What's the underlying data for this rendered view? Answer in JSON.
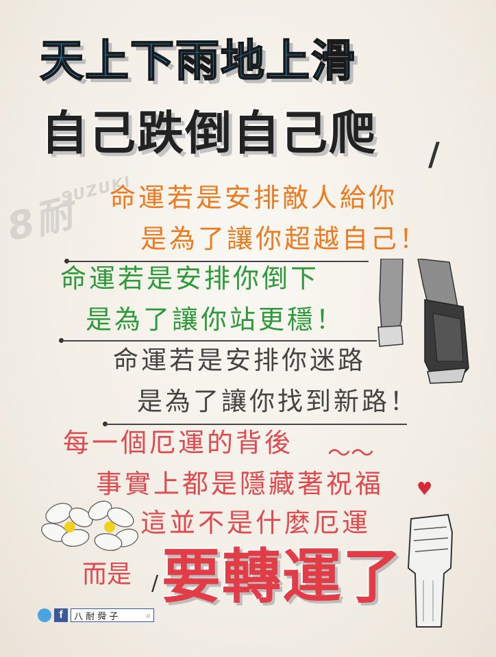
{
  "title": {
    "line1": "天上下雨地上滑",
    "line2": "自己跌倒自己爬"
  },
  "watermark": {
    "main": "8耐",
    "sub": "SUZUKI"
  },
  "verses": {
    "orange_1": "命運若是安排敵人給你",
    "orange_2": "是為了讓你超越自己！",
    "green_1": "命運若是安排你倒下",
    "green_2": "是為了讓你站更穩！",
    "gray_1": "命運若是安排你迷路",
    "gray_2": "是為了讓你找到新路！",
    "red_1": "每一個厄運的背後",
    "red_2": "事實上都是隱藏著祝福",
    "red_3": "這並不是什麼厄運",
    "red_4": "而是",
    "big": "要轉運了"
  },
  "footer": {
    "page_name": "八 耐 舜 子"
  },
  "colors": {
    "blue": "#1f8fd6",
    "orange": "#ec7a1f",
    "green": "#2d9a3a",
    "red": "#e04a4f"
  }
}
